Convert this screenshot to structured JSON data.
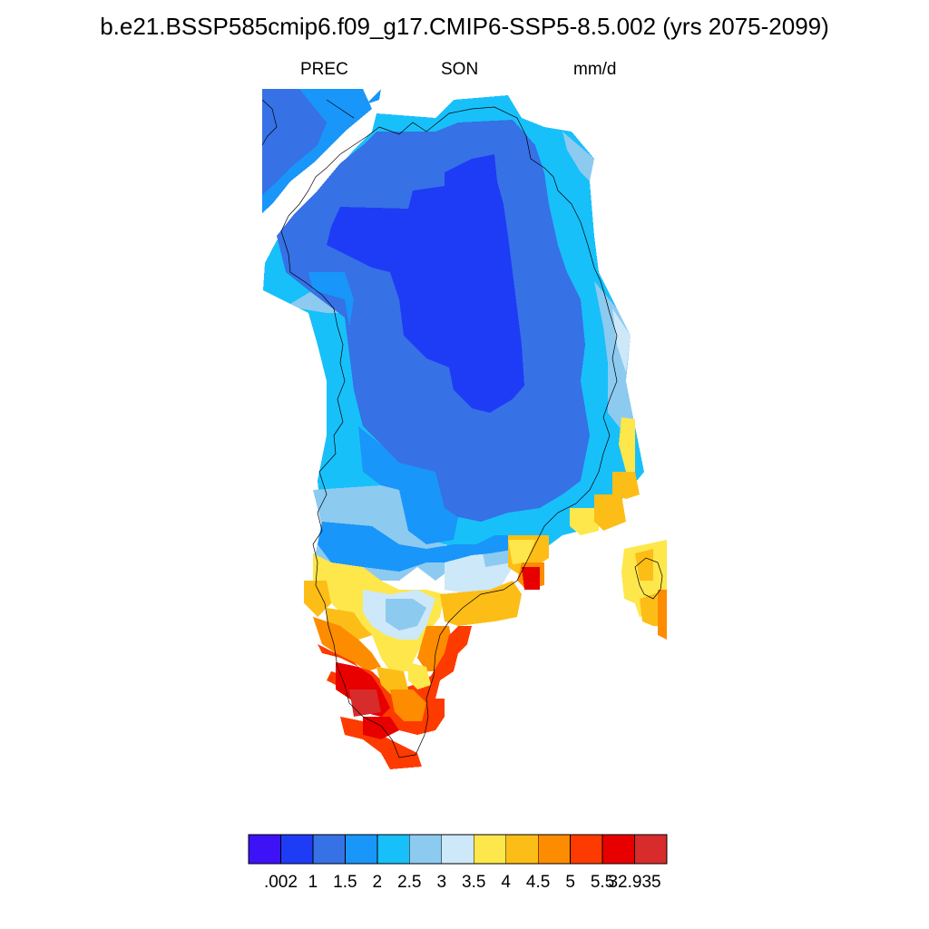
{
  "title": "b.e21.BSSP585cmip6.f09_g17.CMIP6-SSP5-8.5.002 (yrs 2075-2099)",
  "subtitle_left": "PREC",
  "subtitle_center": "SON",
  "subtitle_right": "mm/d",
  "colorbar": {
    "colors": [
      "#3e12f7",
      "#1e3cf5",
      "#3671e6",
      "#1896fa",
      "#18c0fa",
      "#8dcaf0",
      "#cde8f8",
      "#fde74b",
      "#fdbd17",
      "#fd8c00",
      "#fd3b00",
      "#e80000",
      "#d82b2b"
    ],
    "labels": [
      ".002",
      "1",
      "1.5",
      "2",
      "2.5",
      "3",
      "3.5",
      "4",
      "4.5",
      "5",
      "5.5",
      "32.935"
    ]
  }
}
